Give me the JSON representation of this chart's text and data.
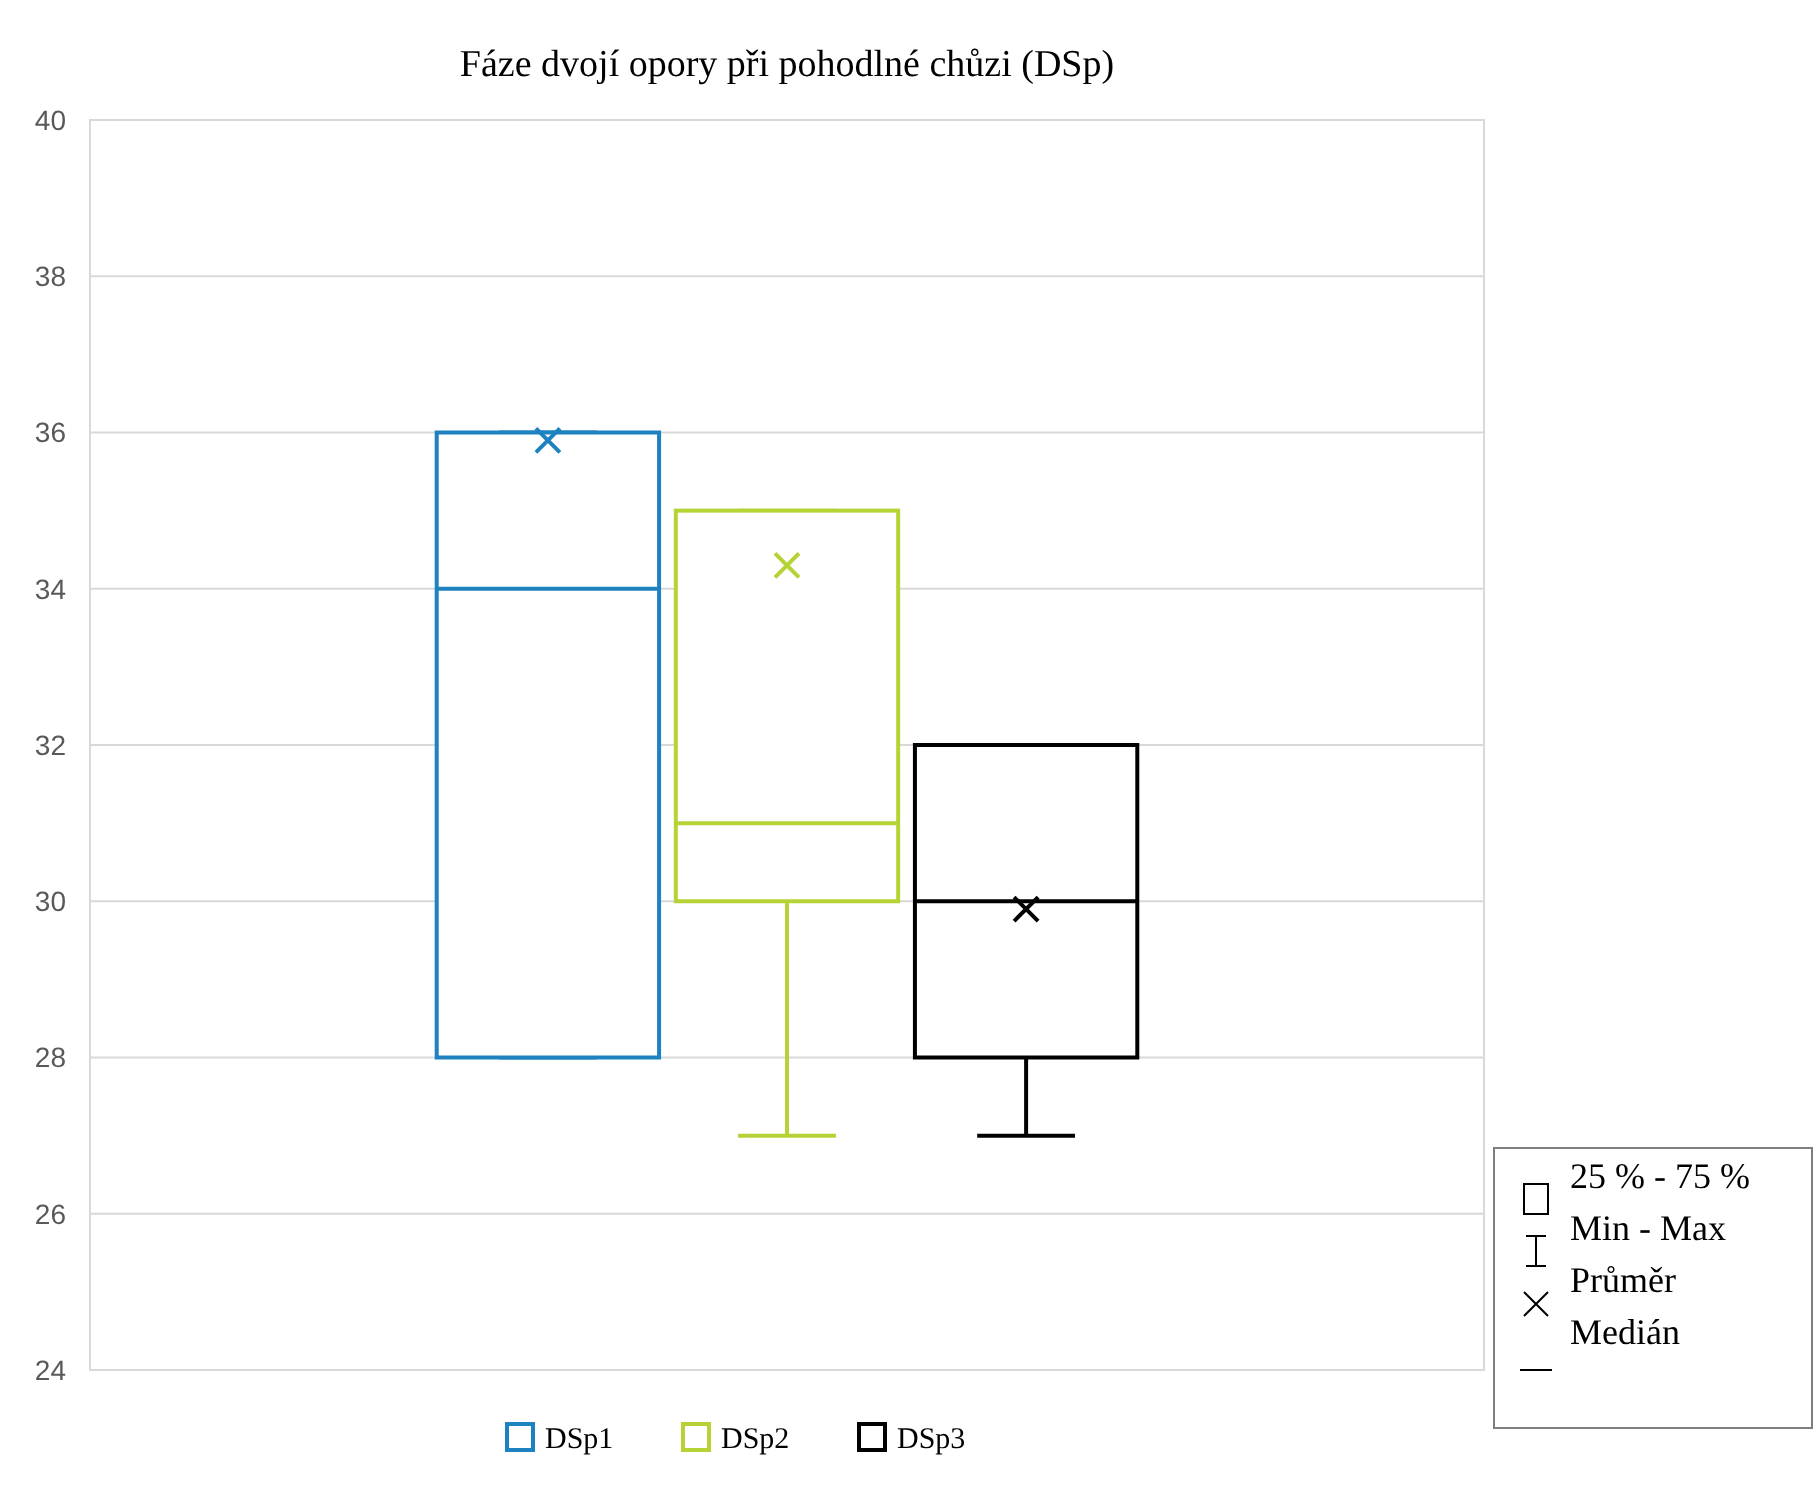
{
  "chart_data": {
    "type": "box",
    "title": "Fáze dvojí opory při pohodlné chůzi (DSp)",
    "categories": [
      null
    ],
    "ylim": [
      24,
      40
    ],
    "yticks": [
      24,
      26,
      28,
      30,
      32,
      34,
      36,
      38,
      40
    ],
    "grid": "y",
    "legend": "bottom",
    "series": [
      {
        "name": "DSp1",
        "color": "#1f82c0",
        "boxes": [
          {
            "low": 28,
            "q1": 28,
            "median": 34,
            "q3": 36,
            "high": 36,
            "mean": 35.9
          }
        ]
      },
      {
        "name": "DSp2",
        "color": "#b5d334",
        "boxes": [
          {
            "low": 27,
            "q1": 30,
            "median": 31,
            "q3": 35,
            "high": 35,
            "mean": 34.3
          }
        ]
      },
      {
        "name": "DSp3",
        "color": "#000000",
        "boxes": [
          {
            "low": 27,
            "q1": 28,
            "median": 30,
            "q3": 32,
            "high": 32,
            "mean": 29.9
          }
        ]
      }
    ],
    "annotations": [
      "25 % - 75 %",
      "Min - Max",
      "Průměr",
      "Medián"
    ]
  }
}
